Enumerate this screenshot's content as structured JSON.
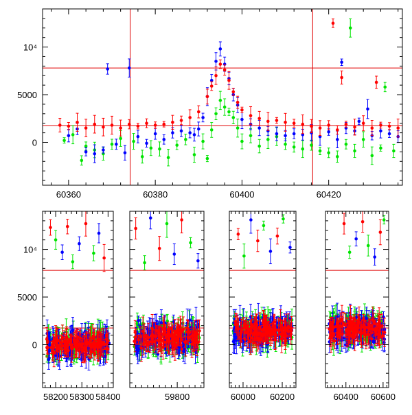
{
  "colors": {
    "red": "#ff0000",
    "green": "#00e400",
    "blue": "#0000ff",
    "refline": "#e00000",
    "axis": "#000000"
  },
  "chart_data": [
    {
      "type": "scatter",
      "title": "",
      "xlabel": "",
      "ylabel": "",
      "xlim": [
        60354,
        60437
      ],
      "ylim": [
        -4500,
        14000
      ],
      "x_ticks": [
        60360,
        60380,
        60400,
        60420
      ],
      "x_tick_labels": [
        "60360",
        "60380",
        "60400",
        "60420"
      ],
      "y_ticks": [
        0,
        5000,
        10000
      ],
      "y_tick_labels": [
        "0",
        "5000",
        "10⁴"
      ],
      "reference_lines": {
        "horizontal": [
          7800,
          1750
        ],
        "vertical": [
          60374.2,
          60416.3
        ]
      },
      "error_bars": true,
      "series": [
        {
          "color": "red",
          "points": [
            [
              60358,
              1800
            ],
            [
              60360,
              1700
            ],
            [
              60362,
              2100
            ],
            [
              60364,
              1500
            ],
            [
              60366,
              1900
            ],
            [
              60368,
              1600
            ],
            [
              60370,
              1800
            ],
            [
              60372,
              1500
            ],
            [
              60374,
              1900
            ],
            [
              60376,
              1700
            ],
            [
              60378,
              2000
            ],
            [
              60380,
              1800
            ],
            [
              60382,
              1900
            ],
            [
              60384,
              2100
            ],
            [
              60386,
              2300
            ],
            [
              60388,
              2600
            ],
            [
              60390,
              3200
            ],
            [
              60392,
              4800
            ],
            [
              60393,
              5900
            ],
            [
              60394,
              7000
            ],
            [
              60395,
              8200
            ],
            [
              60396,
              7600
            ],
            [
              60397,
              6500
            ],
            [
              60398,
              5300
            ],
            [
              60399,
              4200
            ],
            [
              60400,
              3400
            ],
            [
              60402,
              2800
            ],
            [
              60404,
              2500
            ],
            [
              60406,
              2200
            ],
            [
              60408,
              2300
            ],
            [
              60410,
              2100
            ],
            [
              60412,
              2000
            ],
            [
              60414,
              1900
            ],
            [
              60416,
              1700
            ],
            [
              60418,
              1500
            ],
            [
              60420,
              1800
            ],
            [
              60421,
              12500
            ],
            [
              60422,
              1300
            ],
            [
              60423,
              6800
            ],
            [
              60424,
              1900
            ],
            [
              60426,
              1600
            ],
            [
              60428,
              2000
            ],
            [
              60430,
              1500
            ],
            [
              60431,
              6300
            ],
            [
              60432,
              1800
            ],
            [
              60434,
              1700
            ],
            [
              60436,
              1500
            ]
          ]
        },
        {
          "color": "green",
          "points": [
            [
              60359,
              200
            ],
            [
              60361,
              800
            ],
            [
              60363,
              -1900
            ],
            [
              60364,
              -400
            ],
            [
              60366,
              -800
            ],
            [
              60368,
              -1200
            ],
            [
              60370,
              -200
            ],
            [
              60372,
              400
            ],
            [
              60375,
              100
            ],
            [
              60377,
              -1500
            ],
            [
              60379,
              -600
            ],
            [
              60381,
              -700
            ],
            [
              60383,
              -1600
            ],
            [
              60385,
              -300
            ],
            [
              60387,
              300
            ],
            [
              60389,
              -1300
            ],
            [
              60391,
              100
            ],
            [
              60392,
              -1700
            ],
            [
              60393,
              1300
            ],
            [
              60394,
              3000
            ],
            [
              60395,
              4400
            ],
            [
              60396,
              3700
            ],
            [
              60397,
              3200
            ],
            [
              60398,
              2600
            ],
            [
              60399,
              1500
            ],
            [
              60400,
              100
            ],
            [
              60402,
              700
            ],
            [
              60404,
              -400
            ],
            [
              60406,
              300
            ],
            [
              60408,
              600
            ],
            [
              60410,
              -200
            ],
            [
              60412,
              -500
            ],
            [
              60414,
              -700
            ],
            [
              60416,
              -300
            ],
            [
              60418,
              -900
            ],
            [
              60420,
              -1100
            ],
            [
              60422,
              -1500
            ],
            [
              60424,
              -200
            ],
            [
              60425,
              12000
            ],
            [
              60426,
              -900
            ],
            [
              60428,
              300
            ],
            [
              60430,
              -1400
            ],
            [
              60432,
              -600
            ],
            [
              60433,
              5800
            ],
            [
              60435,
              -900
            ]
          ]
        },
        {
          "color": "blue",
          "points": [
            [
              60360,
              700
            ],
            [
              60362,
              1400
            ],
            [
              60364,
              -1000
            ],
            [
              60366,
              -1200
            ],
            [
              60368,
              -800
            ],
            [
              60369,
              7700
            ],
            [
              60371,
              -200
            ],
            [
              60373,
              -1100
            ],
            [
              60374,
              7800
            ],
            [
              60376,
              600
            ],
            [
              60378,
              -100
            ],
            [
              60380,
              900
            ],
            [
              60382,
              300
            ],
            [
              60384,
              1000
            ],
            [
              60386,
              1200
            ],
            [
              60388,
              1000
            ],
            [
              60389,
              800
            ],
            [
              60390,
              1400
            ],
            [
              60391,
              2600
            ],
            [
              60392,
              4800
            ],
            [
              60393,
              6500
            ],
            [
              60394,
              8500
            ],
            [
              60395,
              9800
            ],
            [
              60396,
              8200
            ],
            [
              60397,
              6700
            ],
            [
              60398,
              5000
            ],
            [
              60399,
              3900
            ],
            [
              60400,
              2400
            ],
            [
              60402,
              1900
            ],
            [
              60404,
              1500
            ],
            [
              60406,
              1200
            ],
            [
              60408,
              900
            ],
            [
              60410,
              700
            ],
            [
              60412,
              900
            ],
            [
              60414,
              800
            ],
            [
              60416,
              1000
            ],
            [
              60418,
              600
            ],
            [
              60420,
              1100
            ],
            [
              60422,
              300
            ],
            [
              60423,
              8400
            ],
            [
              60424,
              1500
            ],
            [
              60426,
              1200
            ],
            [
              60427,
              2200
            ],
            [
              60429,
              3500
            ],
            [
              60430,
              700
            ],
            [
              60432,
              1200
            ],
            [
              60434,
              900
            ],
            [
              60436,
              600
            ]
          ]
        }
      ]
    },
    {
      "type": "scatter",
      "title": "",
      "xlabel": "",
      "ylabel": "",
      "ylim": [
        -4500,
        14000
      ],
      "y_ticks": [
        0,
        5000,
        10000
      ],
      "y_tick_labels": [
        "0",
        "5000",
        "10⁴"
      ],
      "reference_lines": {
        "horizontal": [
          7800,
          1750
        ]
      },
      "error_bars": true,
      "broken_axis": true,
      "segments": [
        {
          "xlim": [
            58150,
            58420
          ],
          "x_ticks": [
            58200,
            58300,
            58400
          ],
          "x_tick_labels": [
            "58200",
            "58300",
            "58400"
          ],
          "baseline": 0,
          "scatter": 1400,
          "points": 120,
          "outliers": [
            [
              58180,
              12300
            ],
            [
              58200,
              11000
            ],
            [
              58225,
              9700
            ],
            [
              58245,
              12400
            ],
            [
              58265,
              8700
            ],
            [
              58290,
              10600
            ],
            [
              58315,
              12700
            ],
            [
              58345,
              9600
            ],
            [
              58365,
              11700
            ],
            [
              58385,
              9100
            ]
          ]
        },
        {
          "xlim": [
            59640,
            59890
          ],
          "x_ticks": [
            59800
          ],
          "x_tick_labels": [
            "59800"
          ],
          "baseline": 800,
          "scatter": 1800,
          "points": 120,
          "outliers": [
            [
              59660,
              12200
            ],
            [
              59690,
              8600
            ],
            [
              59710,
              13300
            ],
            [
              59740,
              10100
            ],
            [
              59765,
              12700
            ],
            [
              59790,
              9500
            ],
            [
              59815,
              13100
            ],
            [
              59845,
              10700
            ],
            [
              59870,
              8800
            ]
          ]
        },
        {
          "xlim": [
            59930,
            60270
          ],
          "x_ticks": [
            60000,
            60200
          ],
          "x_tick_labels": [
            "60000",
            "60200"
          ],
          "baseline": 1400,
          "scatter": 1600,
          "points": 120,
          "outliers": [
            [
              59975,
              11600
            ],
            [
              60005,
              9300
            ],
            [
              60040,
              13100
            ],
            [
              60075,
              10900
            ],
            [
              60105,
              12500
            ],
            [
              60140,
              9800
            ],
            [
              60175,
              11400
            ],
            [
              60205,
              13200
            ],
            [
              60240,
              10200
            ]
          ]
        },
        {
          "xlim": [
            60290,
            60630
          ],
          "x_ticks": [
            60400,
            60600
          ],
          "x_tick_labels": [
            "60400",
            "60600"
          ],
          "baseline": 1600,
          "scatter": 1700,
          "points": 120,
          "outliers": [
            [
              60390,
              12700
            ],
            [
              60420,
              9700
            ],
            [
              60455,
              11100
            ],
            [
              60490,
              12900
            ],
            [
              60520,
              10400
            ],
            [
              60555,
              9200
            ],
            [
              60585,
              11800
            ],
            [
              60605,
              13100
            ]
          ]
        }
      ]
    }
  ]
}
